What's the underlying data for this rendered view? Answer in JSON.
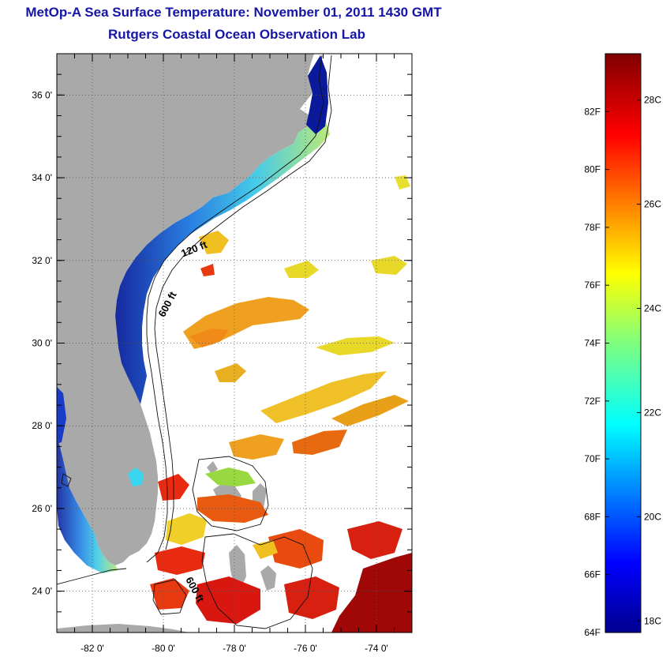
{
  "title": {
    "line1": "MetOp-A Sea Surface Temperature:  November 01, 2011 1430 GMT",
    "line2": "Rutgers Coastal Ocean Observation Lab"
  },
  "map": {
    "lon_range": [
      -83,
      -73
    ],
    "lat_range": [
      23,
      37
    ],
    "lat_ticks": [
      {
        "lat": 36,
        "label": "36 0'"
      },
      {
        "lat": 34,
        "label": "34 0'"
      },
      {
        "lat": 32,
        "label": "32 0'"
      },
      {
        "lat": 30,
        "label": "30 0'"
      },
      {
        "lat": 28,
        "label": "28 0'"
      },
      {
        "lat": 26,
        "label": "26 0'"
      },
      {
        "lat": 24,
        "label": "24 0'"
      }
    ],
    "lon_ticks": [
      {
        "lon": -82,
        "label": "-82 0'"
      },
      {
        "lon": -80,
        "label": "-80 0'"
      },
      {
        "lon": -78,
        "label": "-78 0'"
      },
      {
        "lon": -76,
        "label": "-76 0'"
      },
      {
        "lon": -74,
        "label": "-74 0'"
      }
    ],
    "grid": "dotted",
    "land_color": "#a9a9a9",
    "contour_labels": [
      {
        "text": "120 ft",
        "lon": -79.1,
        "lat": 32.2
      },
      {
        "text": "600 ft",
        "lon": -79.8,
        "lat": 30.9
      },
      {
        "text": "600 ft",
        "lon": -79.2,
        "lat": 24.0
      }
    ]
  },
  "colorbar": {
    "min_temp_f": 64,
    "max_temp_f": 84,
    "fahrenheit_ticks": [
      "82F",
      "80F",
      "78F",
      "76F",
      "74F",
      "72F",
      "70F",
      "68F",
      "66F",
      "64F"
    ],
    "celsius_ticks": [
      "28C",
      "26C",
      "24C",
      "22C",
      "20C",
      "18C"
    ]
  }
}
